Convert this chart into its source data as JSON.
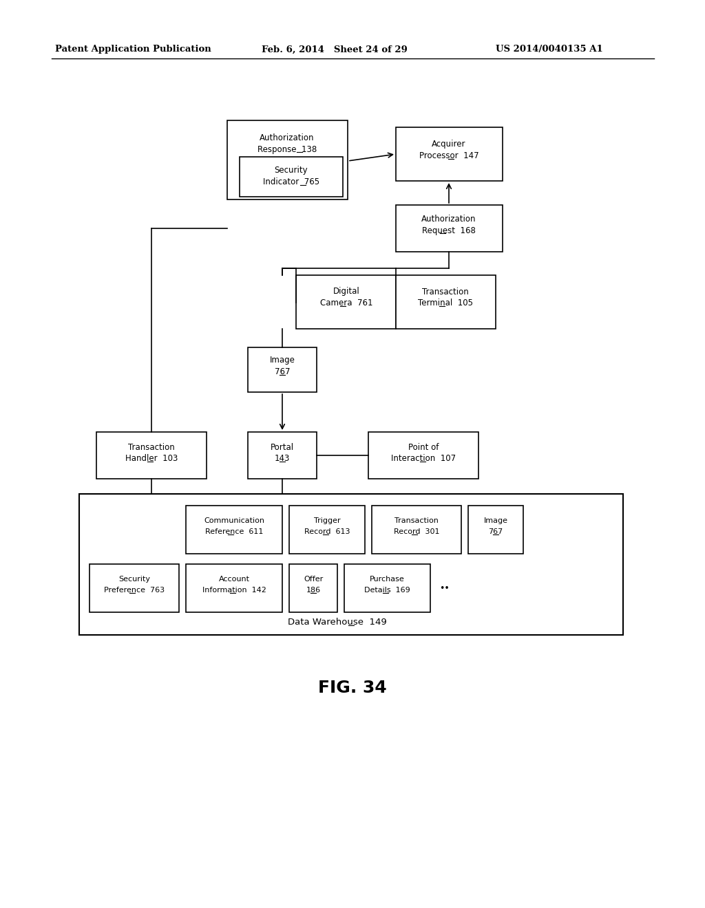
{
  "header_left": "Patent Application Publication",
  "header_mid": "Feb. 6, 2014   Sheet 24 of 29",
  "header_right": "US 2014/0040135 A1",
  "figure_label": "FIG. 34",
  "bg": "#ffffff"
}
